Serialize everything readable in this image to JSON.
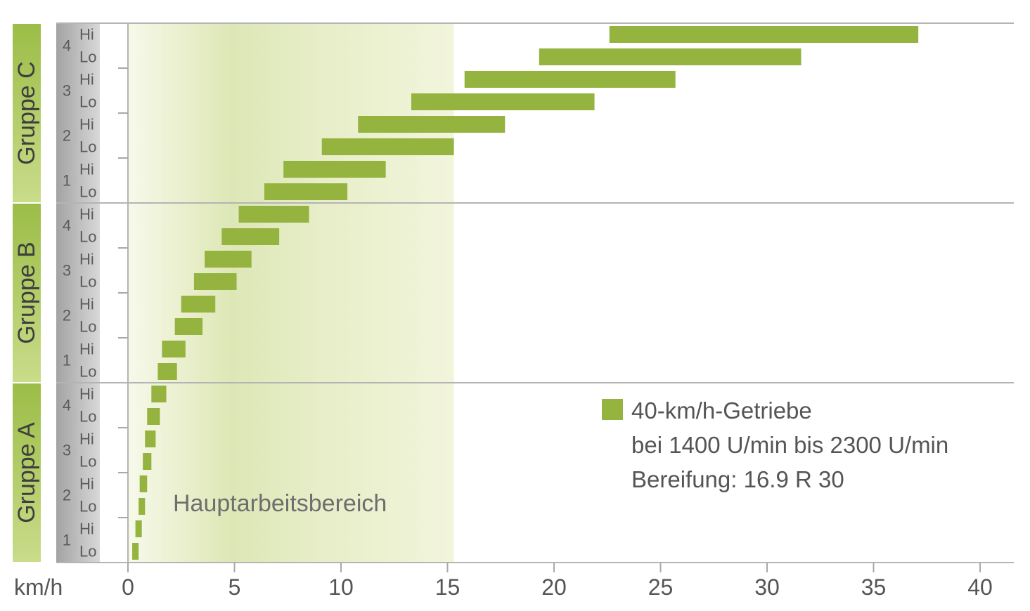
{
  "chart_data": {
    "type": "bar",
    "subtype": "horizontal-range",
    "x_unit_label": "km/h",
    "xlim": [
      0,
      42
    ],
    "x_ticks": [
      "0",
      "5",
      "10",
      "15",
      "20",
      "25",
      "30",
      "35",
      "40"
    ],
    "x_tick_values": [
      0,
      5,
      10,
      15,
      20,
      25,
      30,
      35,
      40
    ],
    "bar_color": "#94b33f",
    "shaded_region": {
      "label": "Hauptarbeitsbereich",
      "from": 0,
      "to": 15.3
    },
    "legend": {
      "label": "40-km/h-Getriebe",
      "line2": "bei 1400 U/min bis 2300 U/min",
      "line3": "Bereifung: 16.9 R 30",
      "position": "lower-right"
    },
    "groups": [
      {
        "name": "Gruppe C",
        "rows": [
          {
            "gear": "4",
            "range": "Hi",
            "start": 22.6,
            "end": 37.1
          },
          {
            "gear": "4",
            "range": "Lo",
            "start": 19.3,
            "end": 31.6
          },
          {
            "gear": "3",
            "range": "Hi",
            "start": 15.8,
            "end": 25.7
          },
          {
            "gear": "3",
            "range": "Lo",
            "start": 13.3,
            "end": 21.9
          },
          {
            "gear": "2",
            "range": "Hi",
            "start": 10.8,
            "end": 17.7
          },
          {
            "gear": "2",
            "range": "Lo",
            "start": 9.1,
            "end": 15.3
          },
          {
            "gear": "1",
            "range": "Hi",
            "start": 7.3,
            "end": 12.1
          },
          {
            "gear": "1",
            "range": "Lo",
            "start": 6.4,
            "end": 10.3
          }
        ]
      },
      {
        "name": "Gruppe B",
        "rows": [
          {
            "gear": "4",
            "range": "Hi",
            "start": 5.2,
            "end": 8.5
          },
          {
            "gear": "4",
            "range": "Lo",
            "start": 4.4,
            "end": 7.1
          },
          {
            "gear": "3",
            "range": "Hi",
            "start": 3.6,
            "end": 5.8
          },
          {
            "gear": "3",
            "range": "Lo",
            "start": 3.1,
            "end": 5.1
          },
          {
            "gear": "2",
            "range": "Hi",
            "start": 2.5,
            "end": 4.1
          },
          {
            "gear": "2",
            "range": "Lo",
            "start": 2.2,
            "end": 3.5
          },
          {
            "gear": "1",
            "range": "Hi",
            "start": 1.6,
            "end": 2.7
          },
          {
            "gear": "1",
            "range": "Lo",
            "start": 1.4,
            "end": 2.3
          }
        ]
      },
      {
        "name": "Gruppe A",
        "rows": [
          {
            "gear": "4",
            "range": "Hi",
            "start": 1.1,
            "end": 1.8
          },
          {
            "gear": "4",
            "range": "Lo",
            "start": 0.9,
            "end": 1.5
          },
          {
            "gear": "3",
            "range": "Hi",
            "start": 0.8,
            "end": 1.3
          },
          {
            "gear": "3",
            "range": "Lo",
            "start": 0.7,
            "end": 1.1
          },
          {
            "gear": "2",
            "range": "Hi",
            "start": 0.55,
            "end": 0.9
          },
          {
            "gear": "2",
            "range": "Lo",
            "start": 0.5,
            "end": 0.8
          },
          {
            "gear": "1",
            "range": "Hi",
            "start": 0.35,
            "end": 0.65
          },
          {
            "gear": "1",
            "range": "Lo",
            "start": 0.2,
            "end": 0.5
          }
        ]
      }
    ]
  }
}
